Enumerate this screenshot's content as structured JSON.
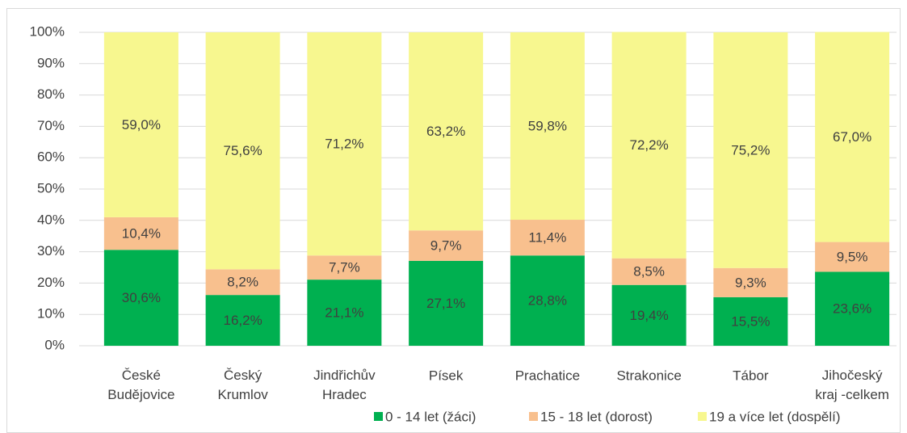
{
  "chart_data": {
    "type": "stacked_bar",
    "categories": [
      "České Budějovice",
      "Český Krumlov",
      "Jindřichův Hradec",
      "Písek",
      "Prachatice",
      "Strakonice",
      "Tábor",
      "Jihočeský kraj -celkem"
    ],
    "series": [
      {
        "name": "0 - 14 let (žáci)",
        "color": "#00b050",
        "values": [
          30.6,
          16.2,
          21.1,
          27.1,
          28.8,
          19.4,
          15.5,
          23.6
        ],
        "value_labels": [
          "30,6%",
          "16,2%",
          "21,1%",
          "27,1%",
          "28,8%",
          "19,4%",
          "15,5%",
          "23,6%"
        ]
      },
      {
        "name": "15 - 18 let (dorost)",
        "color": "#f8c08e",
        "values": [
          10.4,
          8.2,
          7.7,
          9.7,
          11.4,
          8.5,
          9.3,
          9.5
        ],
        "value_labels": [
          "10,4%",
          "8,2%",
          "7,7%",
          "9,7%",
          "11,4%",
          "8,5%",
          "9,3%",
          "9,5%"
        ]
      },
      {
        "name": "19 a více let (dospělí)",
        "color": "#f7f78f",
        "values": [
          59.0,
          75.6,
          71.2,
          63.2,
          59.8,
          72.2,
          75.2,
          67.0
        ],
        "value_labels": [
          "59,0%",
          "75,6%",
          "71,2%",
          "63,2%",
          "59,8%",
          "72,2%",
          "75,2%",
          "67,0%"
        ]
      }
    ],
    "ylim": [
      0,
      100
    ],
    "yticks": [
      {
        "value": 0,
        "label": "0%"
      },
      {
        "value": 10,
        "label": "10%"
      },
      {
        "value": 20,
        "label": "20%"
      },
      {
        "value": 30,
        "label": "30%"
      },
      {
        "value": 40,
        "label": "40%"
      },
      {
        "value": 50,
        "label": "50%"
      },
      {
        "value": 60,
        "label": "60%"
      },
      {
        "value": 70,
        "label": "70%"
      },
      {
        "value": 80,
        "label": "80%"
      },
      {
        "value": 90,
        "label": "90%"
      },
      {
        "value": 100,
        "label": "100%"
      }
    ],
    "grid": true,
    "legend": "bottom"
  }
}
